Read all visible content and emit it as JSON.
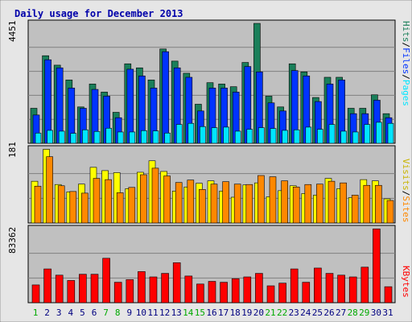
{
  "title": "Daily usage for December 2013",
  "colors": {
    "background": "#e6e6e6",
    "panel": "#c0c0c0",
    "title": "#0000aa",
    "hits": "#1a7f5a",
    "files": "#0033ff",
    "pages": "#00e5ff",
    "visits": "#ffff00",
    "sites": "#ff8800",
    "kbytes": "#ff0000",
    "weekend": "#00aa00"
  },
  "chart_data": [
    {
      "type": "bar",
      "panel": "hits-files-pages",
      "y_max_label": "4451",
      "ylim": [
        0,
        4451
      ],
      "grid": true,
      "legend_words": [
        "Pages",
        "/",
        "Files",
        "/",
        "Hits"
      ],
      "categories": [
        "1",
        "2",
        "3",
        "4",
        "5",
        "6",
        "7",
        "8",
        "9",
        "10",
        "11",
        "12",
        "13",
        "14",
        "15",
        "16",
        "17",
        "18",
        "19",
        "20",
        "21",
        "22",
        "23",
        "24",
        "25",
        "26",
        "27",
        "28",
        "29",
        "30",
        "31"
      ],
      "weekend_days": [
        "1",
        "7",
        "8",
        "14",
        "15",
        "21",
        "22",
        "28",
        "29"
      ],
      "series": [
        {
          "name": "Hits",
          "values": [
            1300,
            3250,
            2900,
            2350,
            1350,
            2200,
            1900,
            1150,
            2950,
            2800,
            2350,
            3500,
            3050,
            2600,
            1450,
            2250,
            2200,
            2100,
            3000,
            4450,
            1750,
            1350,
            2950,
            2650,
            1700,
            2450,
            2450,
            1300,
            1300,
            1800,
            1100
          ]
        },
        {
          "name": "Files",
          "values": [
            1050,
            3100,
            2800,
            2050,
            1300,
            2000,
            1750,
            950,
            2750,
            2500,
            2050,
            3400,
            2800,
            2450,
            1200,
            2050,
            2050,
            1900,
            2850,
            2650,
            1500,
            1200,
            2700,
            2500,
            1550,
            2200,
            2350,
            1100,
            1100,
            1600,
            950
          ]
        },
        {
          "name": "Pages",
          "values": [
            380,
            480,
            450,
            370,
            500,
            440,
            560,
            420,
            420,
            470,
            460,
            380,
            700,
            740,
            620,
            580,
            600,
            450,
            520,
            580,
            550,
            480,
            500,
            600,
            520,
            700,
            450,
            420,
            700,
            780,
            740
          ]
        }
      ]
    },
    {
      "type": "bar",
      "panel": "visits-sites",
      "y_max_label": "181",
      "ylim": [
        0,
        181
      ],
      "grid": true,
      "legend_words": [
        "Sites",
        "/",
        "Visits"
      ],
      "categories": [
        "1",
        "2",
        "3",
        "4",
        "5",
        "6",
        "7",
        "8",
        "9",
        "10",
        "11",
        "12",
        "13",
        "14",
        "15",
        "16",
        "17",
        "18",
        "19",
        "20",
        "21",
        "22",
        "23",
        "24",
        "25",
        "26",
        "27",
        "28",
        "29",
        "30",
        "31"
      ],
      "series": [
        {
          "name": "Visits",
          "values": [
            102,
            180,
            94,
            76,
            95,
            136,
            128,
            123,
            84,
            124,
            152,
            126,
            78,
            88,
            97,
            103,
            78,
            63,
            93,
            98,
            64,
            79,
            91,
            72,
            68,
            109,
            84,
            62,
            106,
            103,
            59
          ]
        },
        {
          "name": "Sites",
          "values": [
            90,
            162,
            91,
            77,
            73,
            109,
            106,
            74,
            87,
            118,
            134,
            115,
            99,
            105,
            82,
            95,
            101,
            95,
            94,
            116,
            113,
            103,
            88,
            94,
            95,
            102,
            98,
            68,
            92,
            92,
            55
          ]
        }
      ]
    },
    {
      "type": "bar",
      "panel": "kbytes",
      "y_max_label": "83362",
      "ylim": [
        0,
        83362
      ],
      "grid": true,
      "legend_words": [
        "KBytes"
      ],
      "categories": [
        "1",
        "2",
        "3",
        "4",
        "5",
        "6",
        "7",
        "8",
        "9",
        "10",
        "11",
        "12",
        "13",
        "14",
        "15",
        "16",
        "17",
        "18",
        "19",
        "20",
        "21",
        "22",
        "23",
        "24",
        "25",
        "26",
        "27",
        "28",
        "29",
        "30",
        "31"
      ],
      "series": [
        {
          "name": "KBytes",
          "values": [
            20000,
            38000,
            31000,
            25000,
            32000,
            32000,
            50000,
            23000,
            26000,
            35000,
            29000,
            33000,
            45000,
            30000,
            21000,
            24000,
            23000,
            27000,
            29000,
            33000,
            19000,
            22000,
            38000,
            23000,
            39000,
            33000,
            31000,
            29000,
            40000,
            83000,
            18000
          ]
        }
      ]
    }
  ]
}
